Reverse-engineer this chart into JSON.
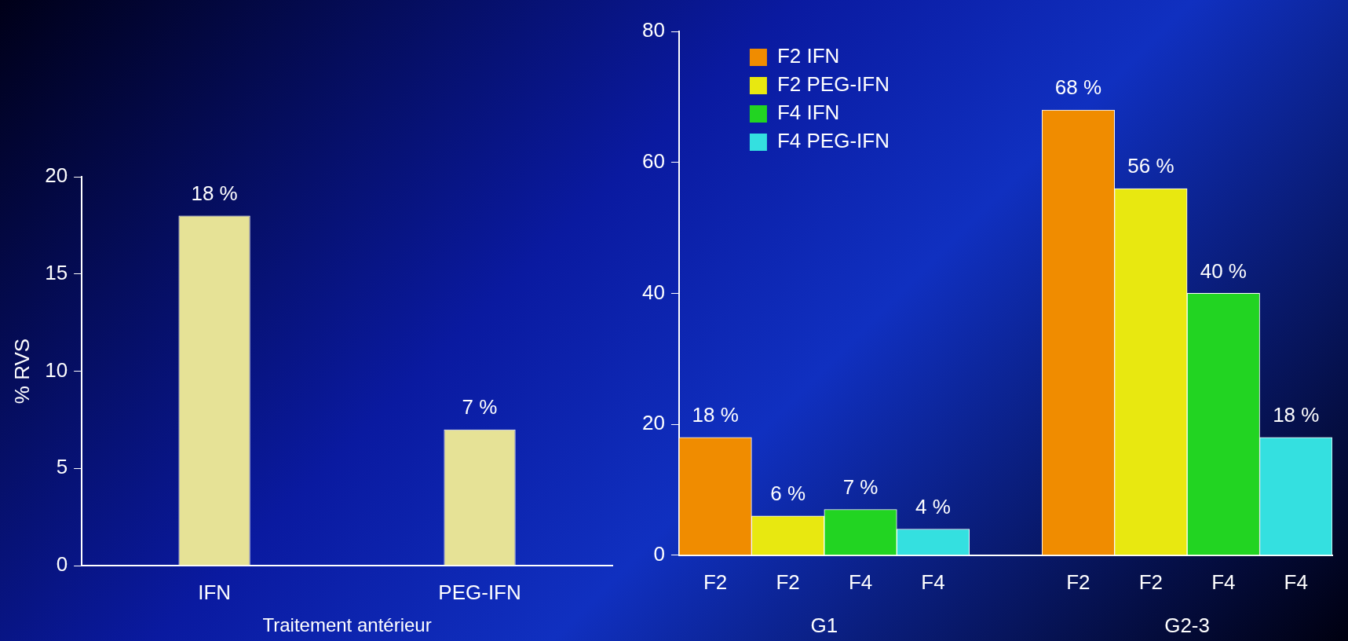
{
  "chart_data": [
    {
      "type": "bar",
      "categories": [
        "IFN",
        "PEG-IFN"
      ],
      "values": [
        18,
        7
      ],
      "value_labels": [
        "18 %",
        "7 %"
      ],
      "color": "#e6e296",
      "ylabel": "% RVS",
      "xlabel": "Traitement antérieur",
      "ylim": [
        0,
        20
      ],
      "yticks": [
        0,
        5,
        10,
        15,
        20
      ],
      "grid": false,
      "legend": false
    },
    {
      "type": "bar",
      "categories": [
        "F2",
        "F2",
        "F4",
        "F4",
        null,
        "F2",
        "F2",
        "F4",
        "F4"
      ],
      "series": [
        {
          "name": "F2 IFN",
          "color": "#f08c00",
          "values": [
            18,
            null,
            null,
            null,
            null,
            68,
            null,
            null,
            null
          ],
          "value_labels": [
            "18 %",
            null,
            null,
            null,
            null,
            "68 %",
            null,
            null,
            null
          ]
        },
        {
          "name": "F2 PEG-IFN",
          "color": "#e8e810",
          "values": [
            null,
            6,
            null,
            null,
            null,
            null,
            56,
            null,
            null
          ],
          "value_labels": [
            null,
            "6 %",
            null,
            null,
            null,
            null,
            "56 %",
            null,
            null
          ]
        },
        {
          "name": "F4 IFN",
          "color": "#22d422",
          "values": [
            null,
            null,
            7,
            null,
            null,
            null,
            null,
            40,
            null
          ],
          "value_labels": [
            null,
            null,
            "7 %",
            null,
            null,
            null,
            null,
            "40 %",
            null
          ]
        },
        {
          "name": "F4 PEG-IFN",
          "color": "#34e0e0",
          "values": [
            null,
            null,
            null,
            4,
            null,
            null,
            null,
            null,
            18
          ],
          "value_labels": [
            null,
            null,
            null,
            "4 %",
            null,
            null,
            null,
            null,
            "18 %"
          ]
        }
      ],
      "ylim": [
        0,
        80
      ],
      "yticks": [
        0,
        20,
        40,
        60,
        80
      ],
      "grid": false,
      "legend": "top left",
      "annotations": [
        "G1",
        "G2-3"
      ]
    }
  ]
}
